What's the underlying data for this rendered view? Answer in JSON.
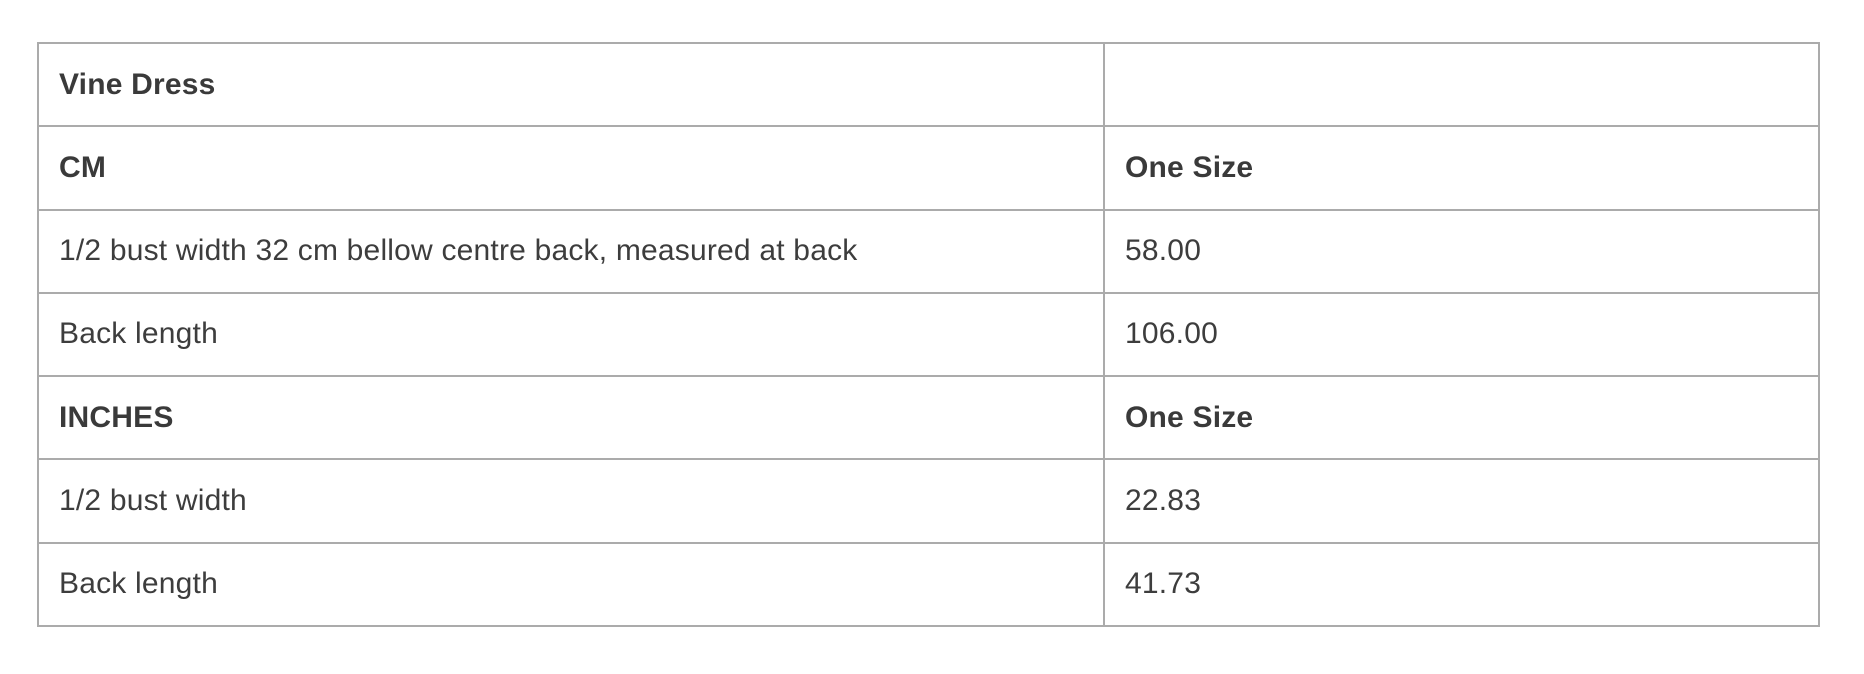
{
  "table": {
    "title": "Vine Dress",
    "rows": [
      {
        "label": "Vine Dress",
        "value": "",
        "bold": true
      },
      {
        "label": "CM",
        "value": "One Size",
        "bold": true
      },
      {
        "label": "1/2 bust width 32 cm bellow centre back, measured at back",
        "value": "58.00",
        "bold": false
      },
      {
        "label": "Back length",
        "value": "106.00",
        "bold": false
      },
      {
        "label": "INCHES",
        "value": "One Size",
        "bold": true
      },
      {
        "label": "1/2 bust width",
        "value": "22.83",
        "bold": false
      },
      {
        "label": "Back length",
        "value": "41.73",
        "bold": false
      }
    ]
  },
  "colors": {
    "border": "#ababab",
    "text": "#3d3d3d",
    "background": "#ffffff"
  }
}
